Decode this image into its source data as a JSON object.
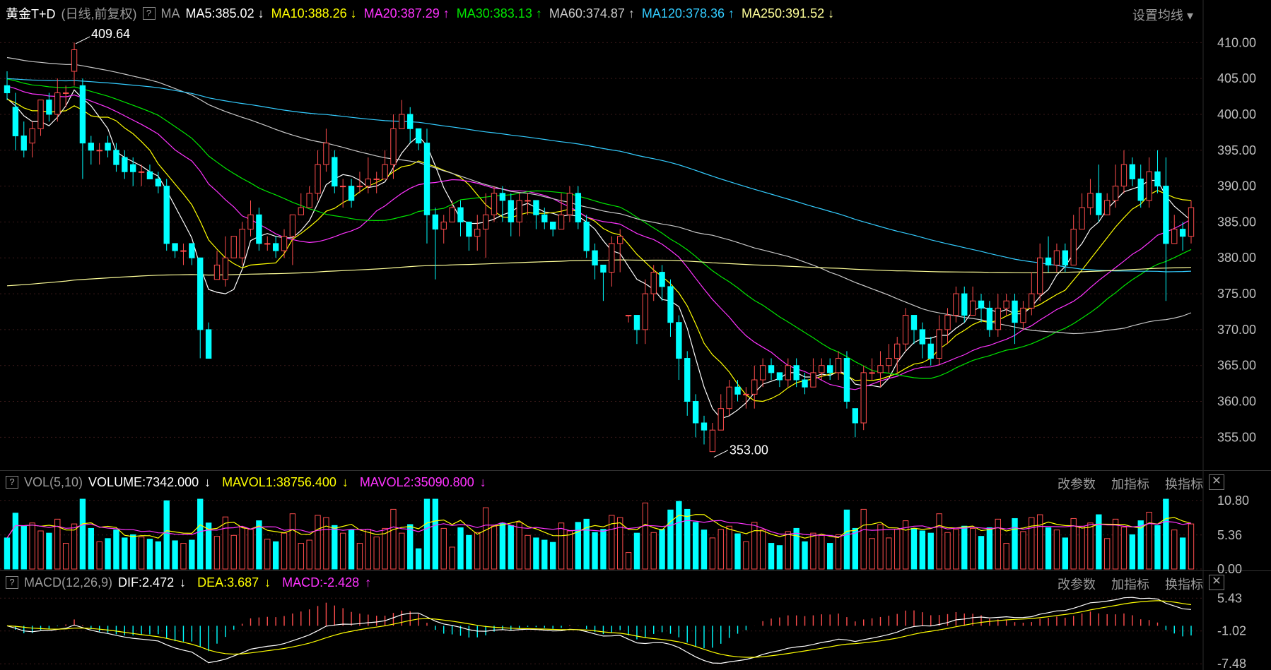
{
  "header": {
    "symbol": "黄金T+D",
    "period": "(日线,前复权)",
    "help": "?",
    "indicator": "MA",
    "ma": [
      {
        "label": "MA5:385.02",
        "arrow": "↓",
        "color": "#ffffff"
      },
      {
        "label": "MA10:388.26",
        "arrow": "↓",
        "color": "#ffff00"
      },
      {
        "label": "MA20:387.29",
        "arrow": "↑",
        "color": "#ff33ff"
      },
      {
        "label": "MA30:383.13",
        "arrow": "↑",
        "color": "#00e600"
      },
      {
        "label": "MA60:374.87",
        "arrow": "↑",
        "color": "#c8c8c8"
      },
      {
        "label": "MA120:378.36",
        "arrow": "↑",
        "color": "#33ccff"
      },
      {
        "label": "MA250:391.52",
        "arrow": "↓",
        "color": "#ffff99"
      }
    ],
    "settings": "设置均线"
  },
  "vol_header": {
    "help": "?",
    "name": "VOL(5,10)",
    "volume": "VOLUME:7342.000",
    "volume_arrow": "↓",
    "mavol1": "MAVOL1:38756.400",
    "mavol1_arrow": "↓",
    "mavol2": "MAVOL2:35090.800",
    "mavol2_arrow": "↓",
    "btn_params": "改参数",
    "btn_add": "加指标",
    "btn_switch": "换指标",
    "btn_close": "✕"
  },
  "macd_header": {
    "help": "?",
    "name": "MACD(12,26,9)",
    "dif": "DIF:2.472",
    "dif_arrow": "↓",
    "dea": "DEA:3.687",
    "dea_arrow": "↓",
    "macd": "MACD:-2.428",
    "macd_arrow": "↑",
    "btn_params": "改参数",
    "btn_add": "加指标",
    "btn_switch": "换指标",
    "btn_close": "✕"
  },
  "colors": {
    "up": "#ff4d4d",
    "down": "#00ffff",
    "grid": "#3a1a1a",
    "axis_text": "#bdbdbd"
  },
  "chart_data": [
    {
      "type": "candlestick",
      "title": "黄金T+D",
      "y_ticks": [
        355,
        360,
        365,
        370,
        375,
        380,
        385,
        390,
        395,
        400,
        405,
        410
      ],
      "y_tick_labels": [
        "355.00",
        "360.00",
        "365.00",
        "370.00",
        "375.00",
        "380.00",
        "385.00",
        "390.00",
        "395.00",
        "400.00",
        "405.00",
        "410.00"
      ],
      "ylim": [
        351,
        412
      ],
      "annotations": [
        {
          "label": "409.64",
          "index": 8,
          "value": 409.64
        },
        {
          "label": "353.00",
          "index": 84,
          "value": 353.0
        }
      ],
      "candles": [
        [
          404,
          403,
          406,
          402
        ],
        [
          401,
          397,
          403,
          395
        ],
        [
          397,
          395,
          399,
          394
        ],
        [
          396,
          398,
          399,
          394
        ],
        [
          398,
          402,
          402,
          397
        ],
        [
          402,
          400,
          403,
          399
        ],
        [
          400,
          403,
          405,
          399
        ],
        [
          403,
          403,
          404,
          401
        ],
        [
          406,
          409,
          410,
          404
        ],
        [
          404,
          396,
          405,
          391
        ],
        [
          396,
          395,
          397,
          393
        ],
        [
          395,
          395,
          396,
          393
        ],
        [
          396,
          395,
          397,
          394
        ],
        [
          395,
          393,
          396,
          392
        ],
        [
          394,
          392,
          395,
          391
        ],
        [
          393,
          392,
          394,
          390
        ],
        [
          392,
          392,
          393,
          390
        ],
        [
          392,
          391,
          393,
          391
        ],
        [
          391,
          390,
          392,
          389
        ],
        [
          390,
          382,
          391,
          381
        ],
        [
          382,
          381,
          382,
          380
        ],
        [
          381,
          381,
          382,
          379
        ],
        [
          382,
          380,
          382,
          379
        ],
        [
          380,
          370,
          380,
          366
        ],
        [
          370,
          366,
          371,
          366
        ],
        [
          377,
          379,
          381,
          377
        ],
        [
          377,
          380,
          383,
          376
        ],
        [
          380,
          383,
          383,
          380
        ],
        [
          380,
          384,
          385,
          379
        ],
        [
          384,
          386,
          388,
          383
        ],
        [
          386,
          382,
          387,
          381
        ],
        [
          382,
          382,
          383,
          381
        ],
        [
          382,
          381,
          383,
          380
        ],
        [
          381,
          383,
          384,
          380
        ],
        [
          383,
          386,
          386,
          379
        ],
        [
          386,
          387,
          389,
          386
        ],
        [
          387,
          389,
          390,
          387
        ],
        [
          389,
          393,
          395,
          388
        ],
        [
          393,
          396,
          398,
          392
        ],
        [
          394,
          390,
          395,
          389
        ],
        [
          390,
          390,
          391,
          387
        ],
        [
          390,
          388,
          391,
          387
        ],
        [
          390,
          390,
          392,
          389
        ],
        [
          390,
          391,
          394,
          389
        ],
        [
          391,
          391,
          392,
          389
        ],
        [
          391,
          393,
          395,
          391
        ],
        [
          393,
          398,
          400,
          391
        ],
        [
          398,
          400,
          402,
          398
        ],
        [
          400,
          398,
          401,
          396
        ],
        [
          398,
          396,
          397,
          395
        ],
        [
          396,
          386,
          398,
          382
        ],
        [
          386,
          384,
          387,
          377
        ],
        [
          384,
          385,
          386,
          382
        ],
        [
          385,
          387,
          388,
          386
        ],
        [
          387,
          385,
          388,
          383
        ],
        [
          385,
          383,
          384,
          381
        ],
        [
          383,
          384,
          386,
          381
        ],
        [
          384,
          386,
          389,
          380
        ],
        [
          386,
          389,
          390,
          385
        ],
        [
          389,
          388,
          390,
          385
        ],
        [
          388,
          385,
          389,
          383
        ],
        [
          385,
          388,
          389,
          383
        ],
        [
          388,
          388,
          389,
          386
        ],
        [
          388,
          386,
          388,
          384
        ],
        [
          386,
          385,
          387,
          384
        ],
        [
          385,
          384,
          385,
          383
        ],
        [
          384,
          386,
          389,
          384
        ],
        [
          386,
          389,
          390,
          385
        ],
        [
          389,
          385,
          390,
          384
        ],
        [
          385,
          381,
          386,
          380
        ],
        [
          381,
          379,
          382,
          377
        ],
        [
          379,
          378,
          379,
          374
        ],
        [
          378,
          382,
          383,
          376
        ],
        [
          382,
          383,
          384,
          378
        ],
        [
          372,
          372,
          372,
          371
        ],
        [
          372,
          370,
          372,
          368
        ],
        [
          370,
          375,
          377,
          368
        ],
        [
          375,
          378,
          379,
          374
        ],
        [
          378,
          376,
          379,
          374
        ],
        [
          376,
          371,
          377,
          369
        ],
        [
          371,
          366,
          372,
          363
        ],
        [
          366,
          360,
          367,
          358
        ],
        [
          360,
          357,
          361,
          355
        ],
        [
          357,
          356,
          358,
          354
        ],
        [
          353,
          356,
          357,
          353
        ],
        [
          356,
          359,
          361,
          356
        ],
        [
          359,
          362,
          363,
          358
        ],
        [
          362,
          361,
          363,
          360
        ],
        [
          361,
          361,
          362,
          359
        ],
        [
          361,
          363,
          365,
          359
        ],
        [
          363,
          365,
          366,
          362
        ],
        [
          365,
          364,
          366,
          363
        ],
        [
          364,
          363,
          364,
          362
        ],
        [
          363,
          365,
          366,
          362
        ],
        [
          365,
          363,
          366,
          362
        ],
        [
          363,
          362,
          364,
          361
        ],
        [
          362,
          364,
          366,
          362
        ],
        [
          364,
          365,
          366,
          363
        ],
        [
          365,
          364,
          366,
          363
        ],
        [
          364,
          366,
          367,
          363
        ],
        [
          366,
          360,
          367,
          359
        ],
        [
          359,
          357,
          359,
          355
        ],
        [
          357,
          364,
          365,
          356
        ],
        [
          364,
          364,
          366,
          363
        ],
        [
          364,
          365,
          367,
          362
        ],
        [
          365,
          366,
          368,
          364
        ],
        [
          366,
          368,
          369,
          364
        ],
        [
          368,
          372,
          373,
          367
        ],
        [
          372,
          370,
          372,
          368
        ],
        [
          370,
          368,
          371,
          366
        ],
        [
          368,
          366,
          369,
          365
        ],
        [
          366,
          370,
          372,
          365
        ],
        [
          370,
          372,
          373,
          368
        ],
        [
          372,
          375,
          376,
          371
        ],
        [
          375,
          372,
          376,
          371
        ],
        [
          372,
          374,
          376,
          372
        ],
        [
          374,
          373,
          375,
          371
        ],
        [
          373,
          370,
          374,
          369
        ],
        [
          370,
          373,
          375,
          369
        ],
        [
          373,
          374,
          375,
          372
        ],
        [
          374,
          371,
          375,
          368
        ],
        [
          371,
          373,
          374,
          370
        ],
        [
          373,
          375,
          378,
          372
        ],
        [
          375,
          380,
          382,
          374
        ],
        [
          380,
          379,
          383,
          378
        ],
        [
          379,
          381,
          382,
          378
        ],
        [
          381,
          379,
          382,
          378
        ],
        [
          379,
          384,
          386,
          379
        ],
        [
          384,
          387,
          389,
          384
        ],
        [
          387,
          389,
          391,
          386
        ],
        [
          389,
          386,
          393,
          385
        ],
        [
          386,
          388,
          389,
          386
        ],
        [
          388,
          390,
          393,
          387
        ],
        [
          390,
          393,
          395,
          389
        ],
        [
          393,
          391,
          394,
          390
        ],
        [
          391,
          388,
          393,
          387
        ],
        [
          388,
          392,
          394,
          387
        ],
        [
          392,
          390,
          395,
          389
        ],
        [
          390,
          382,
          394,
          374
        ],
        [
          382,
          384,
          386,
          382
        ],
        [
          384,
          383,
          385,
          381
        ],
        [
          383,
          387,
          388,
          382
        ]
      ]
    },
    {
      "type": "bar",
      "title": "VOL(5,10)",
      "y_tick_labels": [
        "0.00",
        "5.36",
        "10.80"
      ],
      "ylim": [
        0,
        12
      ]
    },
    {
      "type": "bar+line",
      "title": "MACD(12,26,9)",
      "y_tick_labels": [
        "5.43",
        "-1.02",
        "-7.48"
      ],
      "ylim": [
        -8,
        7
      ]
    }
  ]
}
